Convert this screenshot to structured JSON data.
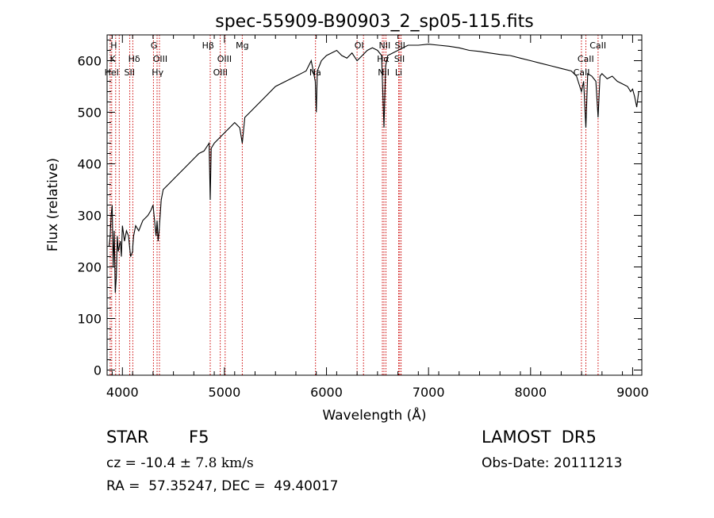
{
  "chart_data": {
    "type": "line",
    "title": "spec-55909-B90903_2_sp05-115.fits",
    "xlabel": "Wavelength (Å)",
    "ylabel": "Flux (relative)",
    "xlim": [
      3850,
      9090
    ],
    "ylim": [
      -10,
      650
    ],
    "xticks": [
      4000,
      5000,
      6000,
      7000,
      8000,
      9000
    ],
    "yticks": [
      0,
      100,
      200,
      300,
      400,
      500,
      600
    ],
    "grid": false,
    "line_color": "#000000",
    "marker_color": "#cc0000",
    "series": [
      {
        "x": [
          3870,
          3880,
          3890,
          3900,
          3910,
          3920,
          3930,
          3940,
          3950,
          3960,
          3970,
          3980,
          3990,
          4000,
          4020,
          4040,
          4060,
          4080,
          4100,
          4102,
          4110,
          4130,
          4160,
          4200,
          4250,
          4280,
          4300,
          4310,
          4330,
          4340,
          4350,
          4360,
          4380,
          4400,
          4450,
          4500,
          4550,
          4600,
          4650,
          4700,
          4750,
          4800,
          4850,
          4861,
          4870,
          4900,
          4950,
          5000,
          5050,
          5100,
          5150,
          5175,
          5200,
          5250,
          5300,
          5400,
          5500,
          5600,
          5700,
          5800,
          5850,
          5890,
          5900,
          5910,
          5950,
          6000,
          6050,
          6100,
          6150,
          6200,
          6250,
          6300,
          6350,
          6400,
          6450,
          6500,
          6540,
          6563,
          6580,
          6600,
          6650,
          6700,
          6750,
          6800,
          6900,
          7000,
          7100,
          7200,
          7300,
          7400,
          7500,
          7600,
          7700,
          7800,
          7900,
          8000,
          8100,
          8200,
          8300,
          8400,
          8450,
          8498,
          8520,
          8542,
          8560,
          8600,
          8640,
          8662,
          8680,
          8700,
          8750,
          8800,
          8850,
          8900,
          8950,
          8980,
          9000,
          9020,
          9040,
          9060
        ],
        "y": [
          240,
          260,
          300,
          320,
          200,
          270,
          150,
          180,
          260,
          230,
          240,
          250,
          220,
          280,
          250,
          270,
          260,
          220,
          230,
          240,
          260,
          280,
          270,
          290,
          300,
          310,
          320,
          300,
          260,
          290,
          250,
          270,
          330,
          350,
          360,
          370,
          380,
          390,
          400,
          410,
          420,
          425,
          440,
          330,
          430,
          440,
          450,
          460,
          470,
          480,
          470,
          440,
          490,
          500,
          510,
          530,
          550,
          560,
          570,
          580,
          600,
          560,
          500,
          580,
          600,
          610,
          615,
          620,
          610,
          605,
          615,
          600,
          610,
          620,
          625,
          620,
          610,
          470,
          590,
          610,
          615,
          620,
          625,
          630,
          630,
          632,
          630,
          628,
          625,
          620,
          618,
          615,
          612,
          610,
          605,
          600,
          595,
          590,
          585,
          580,
          570,
          540,
          560,
          470,
          575,
          570,
          560,
          490,
          570,
          575,
          565,
          570,
          560,
          555,
          550,
          540,
          545,
          530,
          510,
          540
        ]
      }
    ],
    "line_markers": [
      {
        "wl": 3880,
        "text": "H"
      },
      {
        "wl": 3895,
        "text": "HeI"
      },
      {
        "wl": 3934,
        "text": "K"
      },
      {
        "wl": 3969,
        "text": "H"
      },
      {
        "wl": 4072,
        "text": "SII"
      },
      {
        "wl": 4102,
        "text": "Hδ"
      },
      {
        "wl": 4304,
        "text": "G"
      },
      {
        "wl": 4340,
        "text": "Hγ"
      },
      {
        "wl": 4363,
        "text": "OIII"
      },
      {
        "wl": 4861,
        "text": "Hβ"
      },
      {
        "wl": 4959,
        "text": "OIII"
      },
      {
        "wl": 5007,
        "text": "OIII"
      },
      {
        "wl": 5175,
        "text": "Mg"
      },
      {
        "wl": 5892,
        "text": "Na"
      },
      {
        "wl": 6300,
        "text": "OI"
      },
      {
        "wl": 6363,
        "text": "OI"
      },
      {
        "wl": 6548,
        "text": "NII"
      },
      {
        "wl": 6563,
        "text": "Hα"
      },
      {
        "wl": 6583,
        "text": "NII"
      },
      {
        "wl": 6707,
        "text": "Li"
      },
      {
        "wl": 6717,
        "text": "SII"
      },
      {
        "wl": 6731,
        "text": "SII"
      },
      {
        "wl": 8498,
        "text": "CaII"
      },
      {
        "wl": 8542,
        "text": "CaII"
      },
      {
        "wl": 8662,
        "text": "CaII"
      }
    ],
    "line_labels": [
      {
        "text": "H",
        "wl": 3915,
        "level": 0
      },
      {
        "text": "K",
        "wl": 3905,
        "level": 1
      },
      {
        "text": "Hδ",
        "wl": 4115,
        "level": 1
      },
      {
        "text": "HeI",
        "wl": 3895,
        "level": 2
      },
      {
        "text": "SII",
        "wl": 4070,
        "level": 2
      },
      {
        "text": "G",
        "wl": 4310,
        "level": 0
      },
      {
        "text": "OIII",
        "wl": 4370,
        "level": 1
      },
      {
        "text": "Hγ",
        "wl": 4345,
        "level": 2
      },
      {
        "text": "Hβ",
        "wl": 4840,
        "level": 0
      },
      {
        "text": "OIII",
        "wl": 5000,
        "level": 1
      },
      {
        "text": "OIII",
        "wl": 4960,
        "level": 2
      },
      {
        "text": "Mg",
        "wl": 5175,
        "level": 0
      },
      {
        "text": "Na",
        "wl": 5890,
        "level": 2
      },
      {
        "text": "OI",
        "wl": 6320,
        "level": 0
      },
      {
        "text": "NII",
        "wl": 6570,
        "level": 0
      },
      {
        "text": "SII",
        "wl": 6720,
        "level": 0
      },
      {
        "text": "Hα",
        "wl": 6555,
        "level": 1
      },
      {
        "text": "SII",
        "wl": 6715,
        "level": 1
      },
      {
        "text": "NII",
        "wl": 6560,
        "level": 2
      },
      {
        "text": "Li",
        "wl": 6707,
        "level": 2
      },
      {
        "text": "CaII",
        "wl": 8660,
        "level": 0
      },
      {
        "text": "CaII",
        "wl": 8540,
        "level": 1
      },
      {
        "text": "CaII",
        "wl": 8500,
        "level": 2
      }
    ]
  },
  "info": {
    "object_class": "STAR",
    "subclass": "F5",
    "survey": "LAMOST  DR5",
    "cz_label": "cz = ",
    "cz_value": "-10.4",
    "cz_pm": " ± 7.8 km/s",
    "obs_date": "Obs-Date: 20111213",
    "radec": "RA =  57.35247, DEC =  49.40017"
  }
}
